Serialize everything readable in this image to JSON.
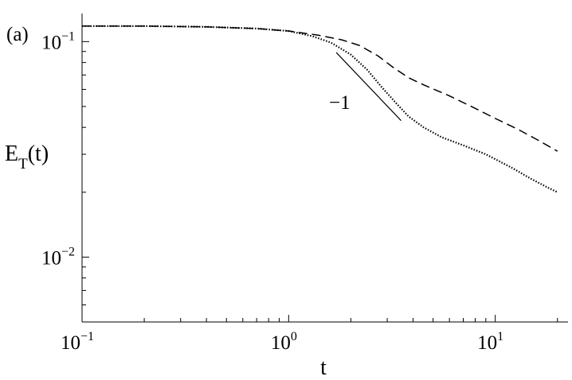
{
  "chart_data": {
    "type": "line",
    "panel_label": "(a)",
    "xlabel": "t",
    "ylabel_main": "E",
    "ylabel_sub": "T",
    "ylabel_tail": "(t)",
    "xscale": "log",
    "yscale": "log",
    "xlim": [
      0.1,
      22.5
    ],
    "ylim": [
      0.005,
      0.135
    ],
    "xticks": [
      {
        "base": "10",
        "exp": "−1",
        "value": 0.1
      },
      {
        "base": "10",
        "exp": "0",
        "value": 1
      },
      {
        "base": "10",
        "exp": "1",
        "value": 10
      }
    ],
    "yticks": [
      {
        "base": "10",
        "exp": "−1",
        "value": 0.1
      },
      {
        "base": "10",
        "exp": "−2",
        "value": 0.01
      }
    ],
    "grid": false,
    "series": [
      {
        "style": "dashed",
        "x": [
          0.1,
          0.2,
          0.4,
          0.7,
          1.0,
          1.4,
          1.8,
          2.2,
          2.7,
          3.2,
          3.8,
          4.5,
          6.0,
          8.0,
          10.0,
          13.0,
          16.0,
          20.0
        ],
        "y": [
          0.118,
          0.118,
          0.117,
          0.115,
          0.112,
          0.107,
          0.102,
          0.096,
          0.086,
          0.076,
          0.068,
          0.063,
          0.056,
          0.049,
          0.044,
          0.039,
          0.035,
          0.031
        ]
      },
      {
        "style": "dotted",
        "x": [
          0.1,
          0.2,
          0.4,
          0.7,
          1.0,
          1.3,
          1.6,
          2.0,
          2.4,
          2.8,
          3.3,
          3.8,
          4.5,
          5.5,
          7.0,
          9.0,
          12.0,
          15.0,
          18.0,
          20.0
        ],
        "y": [
          0.118,
          0.118,
          0.117,
          0.115,
          0.112,
          0.106,
          0.099,
          0.087,
          0.074,
          0.062,
          0.052,
          0.045,
          0.04,
          0.036,
          0.033,
          0.03,
          0.026,
          0.023,
          0.021,
          0.02
        ]
      }
    ],
    "annotation": {
      "text": "−1",
      "slope": -1,
      "x": [
        1.7,
        3.5
      ],
      "y": [
        0.089,
        0.043
      ]
    }
  }
}
